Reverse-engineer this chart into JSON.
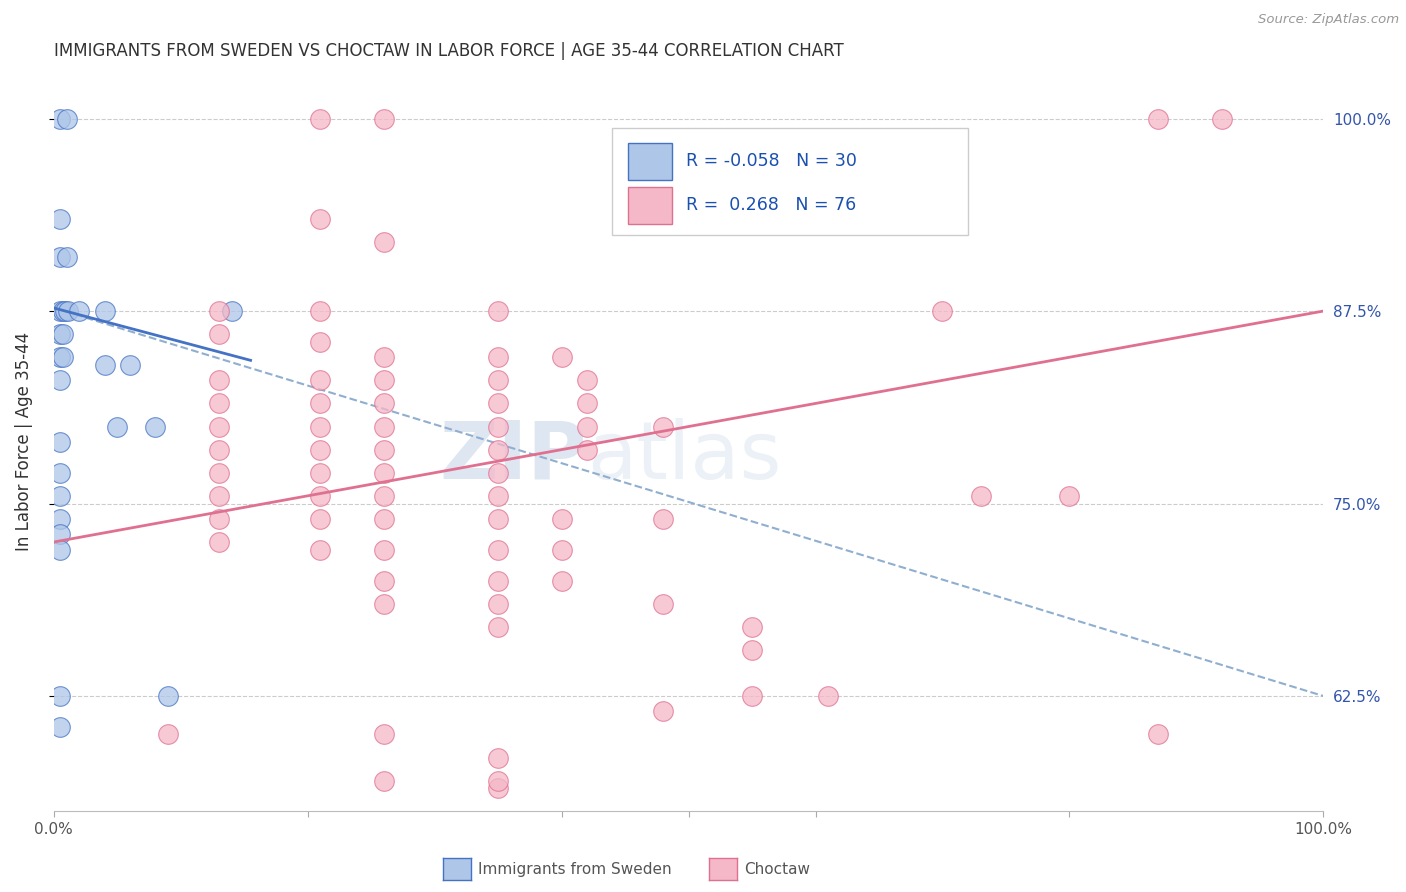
{
  "title": "IMMIGRANTS FROM SWEDEN VS CHOCTAW IN LABOR FORCE | AGE 35-44 CORRELATION CHART",
  "source": "Source: ZipAtlas.com",
  "ylabel": "In Labor Force | Age 35-44",
  "xlim": [
    0.0,
    1.0
  ],
  "ylim": [
    0.55,
    1.03
  ],
  "y_ticks_right": [
    0.625,
    0.75,
    0.875,
    1.0
  ],
  "y_tick_labels_right": [
    "62.5%",
    "75.0%",
    "87.5%",
    "100.0%"
  ],
  "legend_r_sweden": "-0.058",
  "legend_n_sweden": "30",
  "legend_r_choctaw": "0.268",
  "legend_n_choctaw": "76",
  "sweden_fill_color": "#aec6e8",
  "sweden_edge_color": "#4472c4",
  "choctaw_fill_color": "#f4b8c8",
  "choctaw_edge_color": "#e07090",
  "sweden_line_color": "#4472c4",
  "choctaw_line_color": "#e07090",
  "dashed_line_color": "#90afd0",
  "watermark_color": "#c8d8e8",
  "background_color": "#ffffff",
  "grid_color": "#cccccc",
  "right_axis_color": "#3355aa",
  "sweden_points": [
    [
      0.005,
      1.0
    ],
    [
      0.01,
      1.0
    ],
    [
      0.005,
      0.935
    ],
    [
      0.005,
      0.91
    ],
    [
      0.01,
      0.91
    ],
    [
      0.005,
      0.875
    ],
    [
      0.007,
      0.875
    ],
    [
      0.009,
      0.875
    ],
    [
      0.011,
      0.875
    ],
    [
      0.005,
      0.86
    ],
    [
      0.007,
      0.86
    ],
    [
      0.005,
      0.845
    ],
    [
      0.007,
      0.845
    ],
    [
      0.005,
      0.83
    ],
    [
      0.02,
      0.875
    ],
    [
      0.04,
      0.875
    ],
    [
      0.04,
      0.84
    ],
    [
      0.06,
      0.84
    ],
    [
      0.08,
      0.8
    ],
    [
      0.05,
      0.8
    ],
    [
      0.14,
      0.875
    ],
    [
      0.005,
      0.79
    ],
    [
      0.005,
      0.77
    ],
    [
      0.005,
      0.755
    ],
    [
      0.005,
      0.74
    ],
    [
      0.005,
      0.73
    ],
    [
      0.005,
      0.72
    ],
    [
      0.005,
      0.625
    ],
    [
      0.09,
      0.625
    ],
    [
      0.005,
      0.605
    ]
  ],
  "choctaw_points": [
    [
      0.21,
      1.0
    ],
    [
      0.26,
      1.0
    ],
    [
      0.87,
      1.0
    ],
    [
      0.92,
      1.0
    ],
    [
      0.21,
      0.935
    ],
    [
      0.26,
      0.92
    ],
    [
      0.13,
      0.875
    ],
    [
      0.21,
      0.875
    ],
    [
      0.35,
      0.875
    ],
    [
      0.7,
      0.875
    ],
    [
      0.13,
      0.86
    ],
    [
      0.21,
      0.855
    ],
    [
      0.26,
      0.845
    ],
    [
      0.35,
      0.845
    ],
    [
      0.4,
      0.845
    ],
    [
      0.13,
      0.83
    ],
    [
      0.21,
      0.83
    ],
    [
      0.26,
      0.83
    ],
    [
      0.35,
      0.83
    ],
    [
      0.42,
      0.83
    ],
    [
      0.13,
      0.815
    ],
    [
      0.21,
      0.815
    ],
    [
      0.26,
      0.815
    ],
    [
      0.35,
      0.815
    ],
    [
      0.42,
      0.815
    ],
    [
      0.13,
      0.8
    ],
    [
      0.21,
      0.8
    ],
    [
      0.26,
      0.8
    ],
    [
      0.35,
      0.8
    ],
    [
      0.42,
      0.8
    ],
    [
      0.48,
      0.8
    ],
    [
      0.13,
      0.785
    ],
    [
      0.21,
      0.785
    ],
    [
      0.26,
      0.785
    ],
    [
      0.35,
      0.785
    ],
    [
      0.42,
      0.785
    ],
    [
      0.13,
      0.77
    ],
    [
      0.21,
      0.77
    ],
    [
      0.26,
      0.77
    ],
    [
      0.35,
      0.77
    ],
    [
      0.13,
      0.755
    ],
    [
      0.21,
      0.755
    ],
    [
      0.26,
      0.755
    ],
    [
      0.35,
      0.755
    ],
    [
      0.73,
      0.755
    ],
    [
      0.8,
      0.755
    ],
    [
      0.13,
      0.74
    ],
    [
      0.21,
      0.74
    ],
    [
      0.26,
      0.74
    ],
    [
      0.35,
      0.74
    ],
    [
      0.4,
      0.74
    ],
    [
      0.48,
      0.74
    ],
    [
      0.13,
      0.725
    ],
    [
      0.21,
      0.72
    ],
    [
      0.26,
      0.72
    ],
    [
      0.35,
      0.72
    ],
    [
      0.4,
      0.72
    ],
    [
      0.26,
      0.7
    ],
    [
      0.35,
      0.7
    ],
    [
      0.4,
      0.7
    ],
    [
      0.26,
      0.685
    ],
    [
      0.35,
      0.685
    ],
    [
      0.48,
      0.685
    ],
    [
      0.35,
      0.67
    ],
    [
      0.55,
      0.67
    ],
    [
      0.55,
      0.655
    ],
    [
      0.55,
      0.625
    ],
    [
      0.61,
      0.625
    ],
    [
      0.48,
      0.615
    ],
    [
      0.26,
      0.6
    ],
    [
      0.35,
      0.585
    ],
    [
      0.35,
      0.565
    ],
    [
      0.09,
      0.6
    ],
    [
      0.26,
      0.57
    ],
    [
      0.35,
      0.57
    ],
    [
      0.87,
      0.6
    ]
  ]
}
